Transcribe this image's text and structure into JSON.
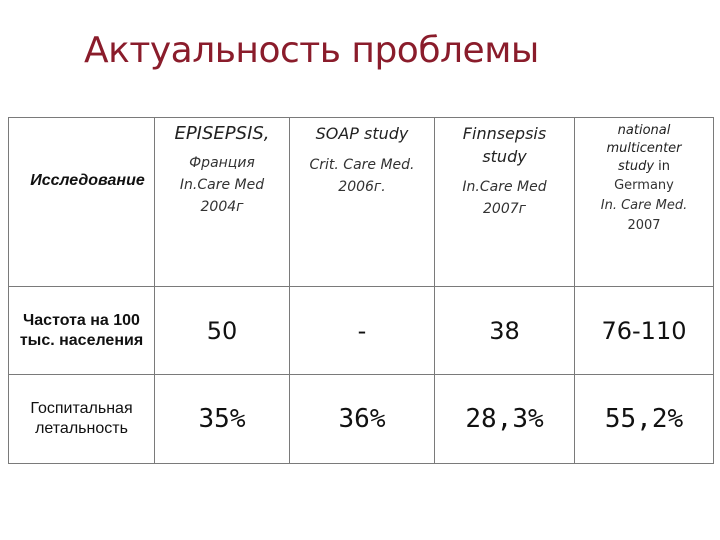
{
  "title": "Актуальность проблемы",
  "table": {
    "corner_label": "Исследование",
    "columns": [
      {
        "name": "EPISEPSIS,",
        "sub1": "Франция",
        "sub2": "In.Care Med",
        "sub3": "2004г"
      },
      {
        "name": "SOAP study",
        "sub1": "Crit. Care Med.",
        "sub2": "2006г."
      },
      {
        "name": "Finnsepsis study",
        "sub1": "In.Care Med",
        "sub2": "2007г"
      },
      {
        "name": "national multicenter study",
        "name_tail": "in",
        "sub1": "Germany",
        "sub2": "In. Care Med.",
        "sub3": "2007"
      }
    ],
    "rows": [
      {
        "label": "Частота на 100 тыс. населения",
        "values": [
          "50",
          "-",
          "38",
          "76-110"
        ]
      },
      {
        "label": "Госпитальная летальность",
        "values": [
          "35%",
          "36%",
          "28,3%",
          "55,2%"
        ]
      }
    ]
  }
}
